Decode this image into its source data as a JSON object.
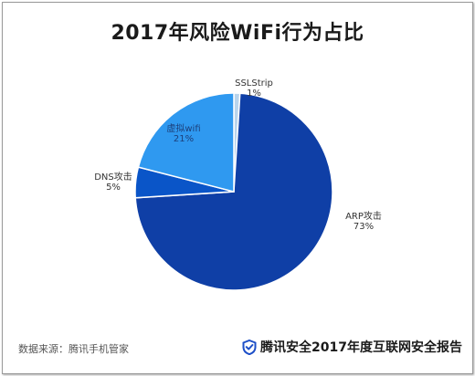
{
  "title": "2017年风险WiFi行为占比",
  "source": "数据来源：腾讯手机管家",
  "brand": "腾讯安全2017年度互联网安全报告",
  "colors": {
    "brand_shield": "#1e50c8"
  },
  "chart_data": {
    "type": "pie",
    "title": "2017年风险WiFi行为占比",
    "slices": [
      {
        "name": "SSLStrip",
        "value": 1,
        "label": "1%",
        "color": "#b9d4ec"
      },
      {
        "name": "ARP攻击",
        "value": 73,
        "label": "73%",
        "color": "#0f3fa6"
      },
      {
        "name": "DNS攻击",
        "value": 5,
        "label": "5%",
        "color": "#0a55c8"
      },
      {
        "name": "虚拟wifi",
        "value": 21,
        "label": "21%",
        "color": "#2f99f0"
      }
    ]
  }
}
